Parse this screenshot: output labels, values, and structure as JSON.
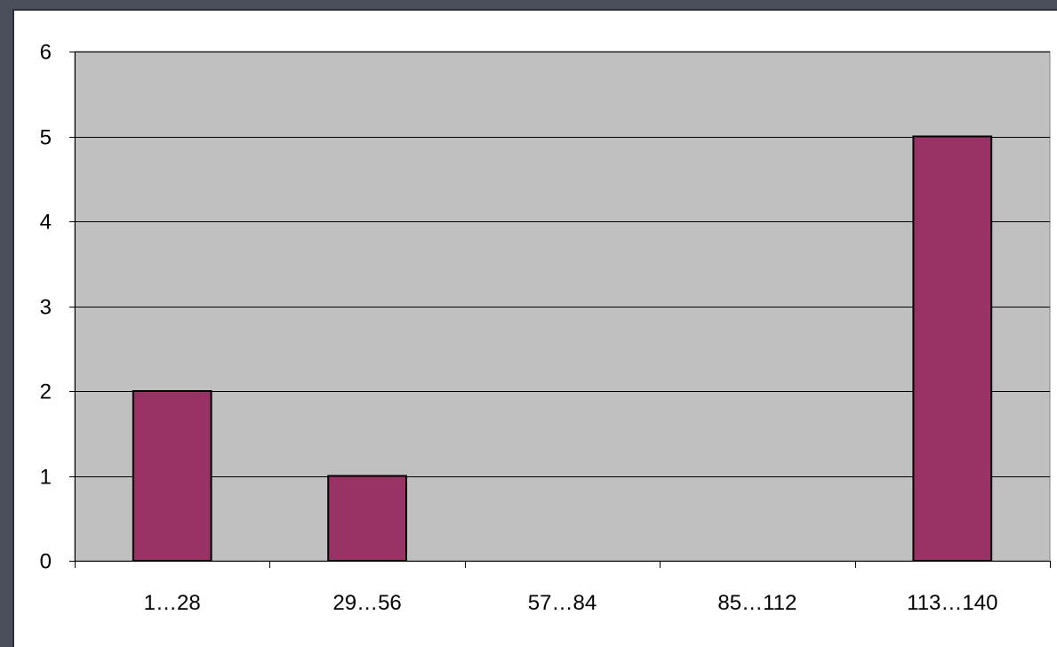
{
  "chart_data": {
    "type": "bar",
    "categories": [
      "1…28",
      "29…56",
      "57…84",
      "85…112",
      "113…140"
    ],
    "values": [
      2,
      1,
      0,
      0,
      5
    ],
    "title": "",
    "xlabel": "",
    "ylabel": "",
    "ylim": [
      0,
      6
    ],
    "yticks": [
      0,
      1,
      2,
      3,
      4,
      5,
      6
    ],
    "grid": true,
    "legend": "none",
    "colors": {
      "bar": "#993366",
      "plot_background": "#c0c0c0",
      "gridline": "#000000"
    }
  }
}
